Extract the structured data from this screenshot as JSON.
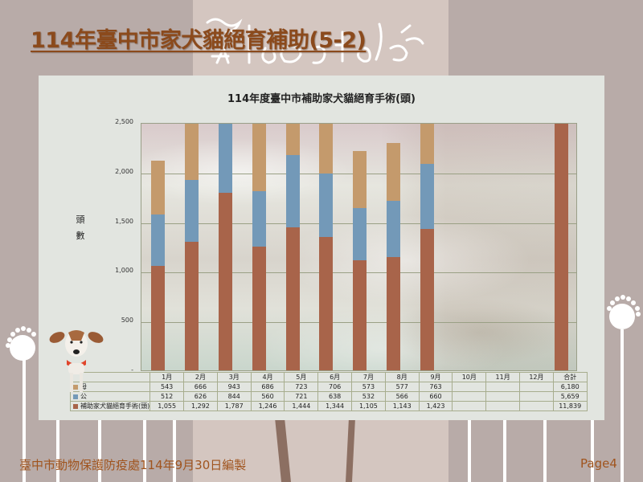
{
  "slide": {
    "title": "114年臺中市家犬貓絕育補助(5-2)",
    "footer": "臺中市動物保護防疫處114年9月30日編製",
    "page": "Page4"
  },
  "colors": {
    "title": "#8b4a1c",
    "footer": "#a0541e",
    "female": "#c49a6c",
    "male": "#7399b8",
    "total": "#a8644a",
    "panel_bg": "#e2e5e0",
    "slide_bg": "#b8aba8"
  },
  "chart": {
    "title": "114年度臺中市補助家犬貓絕育手術(頭)",
    "ylabel_chars": [
      "頭",
      "數"
    ],
    "yticks": [
      "2,500",
      "2,000",
      "1,500",
      "1,000",
      "500",
      "-"
    ],
    "table": {
      "columns": [
        "1月",
        "2月",
        "3月",
        "4月",
        "5月",
        "6月",
        "7月",
        "8月",
        "9月",
        "10月",
        "11月",
        "12月",
        "合計"
      ],
      "rows": [
        {
          "label": "母",
          "values": [
            "543",
            "666",
            "943",
            "686",
            "723",
            "706",
            "573",
            "577",
            "763",
            "",
            "",
            "",
            "6,180"
          ]
        },
        {
          "label": "公",
          "values": [
            "512",
            "626",
            "844",
            "560",
            "721",
            "638",
            "532",
            "566",
            "660",
            "",
            "",
            "",
            "5,659"
          ]
        },
        {
          "label": "補助家犬貓絕育手術(頭)",
          "values": [
            "1,055",
            "1,292",
            "1,787",
            "1,246",
            "1,444",
            "1,344",
            "1,105",
            "1,143",
            "1,423",
            "",
            "",
            "",
            "11,839"
          ]
        }
      ]
    }
  },
  "chart_data": {
    "type": "bar",
    "stacked": true,
    "title": "114年度臺中市補助家犬貓絕育手術(頭)",
    "xlabel": "",
    "ylabel": "頭數",
    "ylim": [
      0,
      2500
    ],
    "yticks": [
      0,
      500,
      1000,
      1500,
      2000,
      2500
    ],
    "grid": true,
    "legend_position": "data-table",
    "categories": [
      "1月",
      "2月",
      "3月",
      "4月",
      "5月",
      "6月",
      "7月",
      "8月",
      "9月",
      "10月",
      "11月",
      "12月",
      "合計"
    ],
    "series": [
      {
        "name": "補助家犬貓絕育手術(頭)",
        "color": "#a8644a",
        "values": [
          1055,
          1292,
          1787,
          1246,
          1444,
          1344,
          1105,
          1143,
          1423,
          null,
          null,
          null,
          11839
        ]
      },
      {
        "name": "公",
        "color": "#7399b8",
        "values": [
          512,
          626,
          844,
          560,
          721,
          638,
          532,
          566,
          660,
          null,
          null,
          null,
          5659
        ]
      },
      {
        "name": "母",
        "color": "#c49a6c",
        "values": [
          543,
          666,
          943,
          686,
          723,
          706,
          573,
          577,
          763,
          null,
          null,
          null,
          6180
        ]
      }
    ],
    "notes": "Bars clipped at axis max 2,500; 合計 column shows only total series (clipped)."
  }
}
